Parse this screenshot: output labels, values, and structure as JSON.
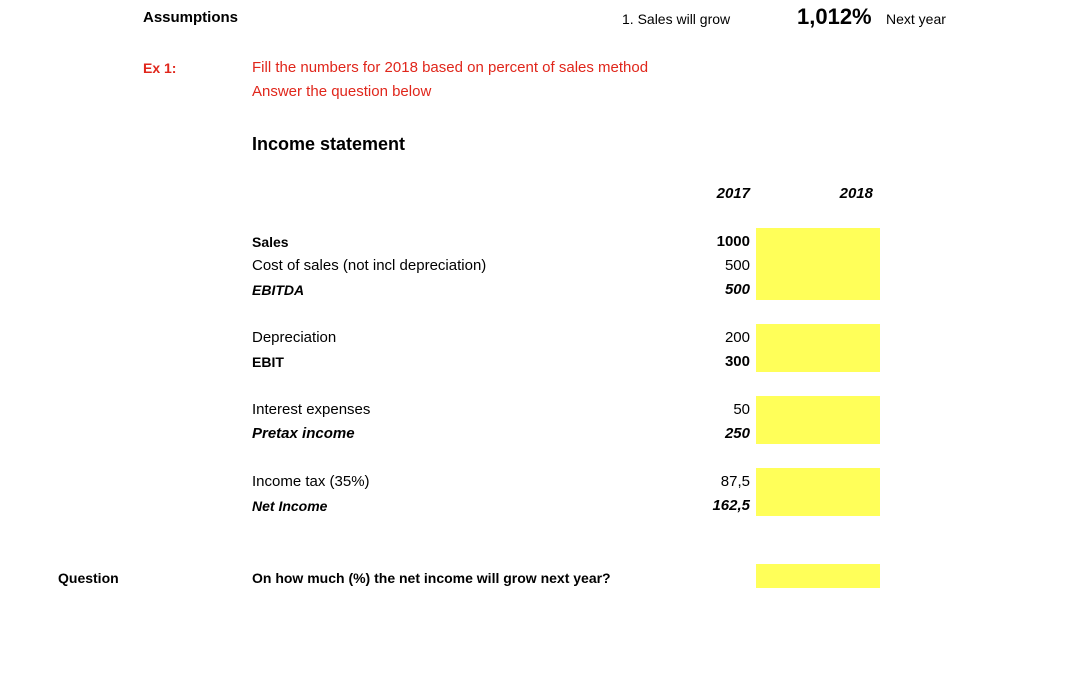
{
  "header": {
    "assumptions_label": "Assumptions",
    "growth_label": "1. Sales will grow",
    "growth_value": "1,012%",
    "growth_suffix": "Next year"
  },
  "exercise": {
    "label": "Ex 1:",
    "instruction_1": "Fill the numbers for 2018 based on percent of sales method",
    "instruction_2": "Answer the question below"
  },
  "income_statement": {
    "title": "Income statement",
    "col_2017": "2017",
    "col_2018": "2018",
    "rows": [
      {
        "label": "Sales",
        "v2017": "1000"
      },
      {
        "label": "Cost of sales (not incl depreciation)",
        "v2017": "500"
      },
      {
        "label": "EBITDA",
        "v2017": "500"
      },
      {
        "label": "Depreciation",
        "v2017": "200"
      },
      {
        "label": "EBIT",
        "v2017": "300"
      },
      {
        "label": "Interest expenses",
        "v2017": "50"
      },
      {
        "label": "Pretax income",
        "v2017": "250"
      },
      {
        "label": "Income tax (35%)",
        "v2017": "87,5"
      },
      {
        "label": "Net Income",
        "v2017": "162,5"
      }
    ]
  },
  "question": {
    "label": "Question",
    "text": "On how much (%) the net income will grow next year?"
  },
  "colors": {
    "highlight": "#ffff59",
    "instruction": "#e0261b"
  }
}
